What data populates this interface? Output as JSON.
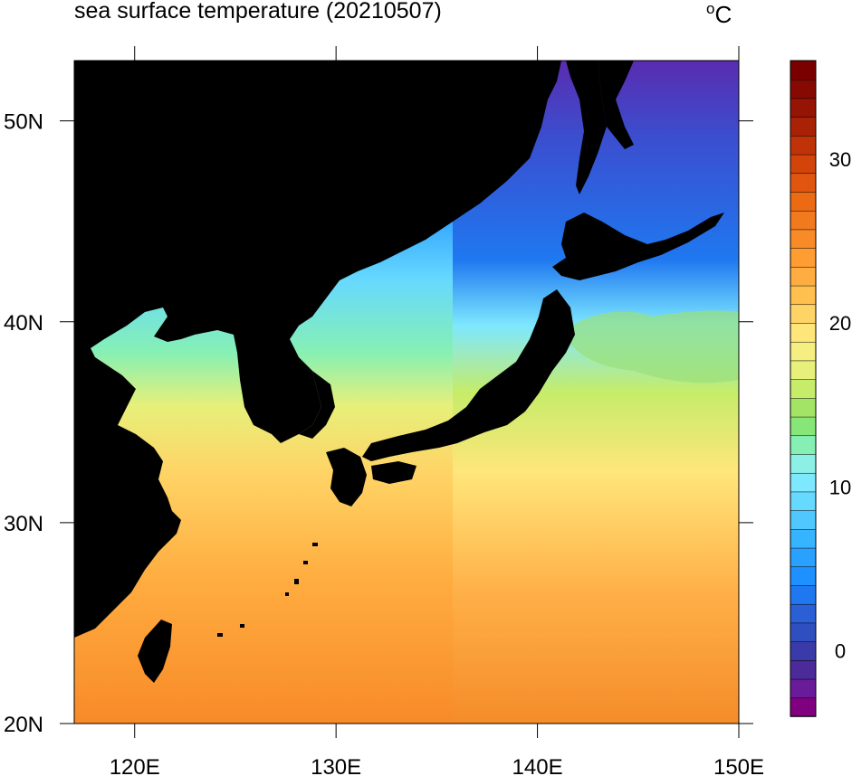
{
  "map": {
    "title": "sea surface temperature (20210507)",
    "unit_degree": "o",
    "unit_letter": "C",
    "land_color": "#000000",
    "lon_labels": [
      "120E",
      "130E",
      "140E",
      "150E"
    ],
    "lat_labels": [
      "20N",
      "30N",
      "40N",
      "50N"
    ],
    "lon_range": [
      117,
      150
    ],
    "lat_range": [
      20,
      53
    ],
    "lon_ticks": [
      120,
      130,
      140,
      150
    ],
    "lat_ticks": [
      20,
      30,
      40,
      50
    ]
  },
  "colorbar": {
    "labels": [
      "0",
      "10",
      "20",
      "30"
    ],
    "ticks": [
      0,
      10,
      20,
      30
    ],
    "range": [
      -4,
      36
    ],
    "colors": [
      "#800080",
      "#6a1b9a",
      "#4b2a9a",
      "#3a3aa8",
      "#2f4fc0",
      "#2a5fd6",
      "#1f78f0",
      "#1e90ff",
      "#2aa0ff",
      "#36b4ff",
      "#50c8ff",
      "#66d9ff",
      "#7ee8ff",
      "#8cf0e6",
      "#86f0b4",
      "#86e678",
      "#a4e464",
      "#c6ec6a",
      "#e6f07a",
      "#f5ee80",
      "#ffe67a",
      "#ffd466",
      "#ffc050",
      "#ffad40",
      "#ff9c32",
      "#f88a28",
      "#f27a1e",
      "#ec6a14",
      "#e0560e",
      "#d2440a",
      "#c03208",
      "#aa2206",
      "#961404",
      "#860a02",
      "#7a0000"
    ]
  }
}
